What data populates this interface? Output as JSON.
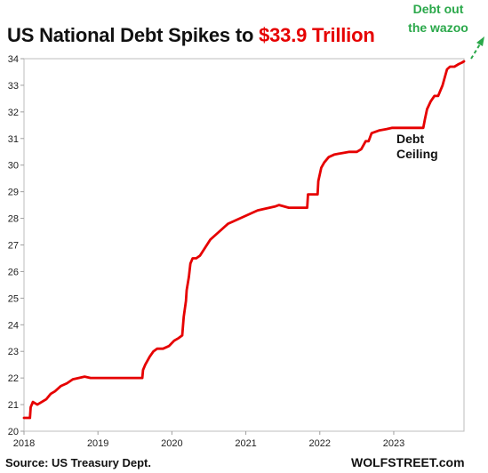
{
  "title_main": "US National Debt Spikes to ",
  "title_highlight": "$33.9 Trillion",
  "annotations": {
    "wazoo": [
      "Debt out",
      "the wazoo"
    ],
    "ceiling": [
      "Debt",
      "Ceiling"
    ]
  },
  "footer": {
    "source": "Source: US Treasury Dept.",
    "brand": "WOLFSTREET.com"
  },
  "colors": {
    "line": "#e60000",
    "title_highlight": "#e60000",
    "annotation_green": "#2aa84a",
    "text": "#111111"
  },
  "chart_data": {
    "type": "line",
    "title": "US National Debt Spikes to $33.9 Trillion",
    "xlabel": "",
    "ylabel": "",
    "xlim": [
      2018.0,
      2023.95
    ],
    "ylim": [
      20,
      34
    ],
    "x_ticks": [
      "2018",
      "2019",
      "2020",
      "2021",
      "2022",
      "2023"
    ],
    "y_ticks": [
      "20",
      "21",
      "22",
      "23",
      "24",
      "25",
      "26",
      "27",
      "28",
      "29",
      "30",
      "31",
      "32",
      "33",
      "34"
    ],
    "grid": false,
    "legend": "none",
    "series": [
      {
        "units": "trillion $",
        "x": [
          2018.0,
          2018.08,
          2018.09,
          2018.12,
          2018.18,
          2018.24,
          2018.3,
          2018.36,
          2018.42,
          2018.5,
          2018.58,
          2018.66,
          2018.74,
          2018.82,
          2018.9,
          2018.98,
          2019.05,
          2019.12,
          2019.16,
          2019.2,
          2019.6,
          2019.61,
          2019.64,
          2019.7,
          2019.75,
          2019.8,
          2019.88,
          2019.96,
          2020.03,
          2020.09,
          2020.14,
          2020.16,
          2020.19,
          2020.2,
          2020.23,
          2020.25,
          2020.28,
          2020.33,
          2020.38,
          2020.45,
          2020.52,
          2020.6,
          2020.68,
          2020.76,
          2020.84,
          2020.92,
          2021.0,
          2021.08,
          2021.16,
          2021.24,
          2021.32,
          2021.4,
          2021.45,
          2021.58,
          2021.59,
          2021.83,
          2021.84,
          2021.96,
          2021.97,
          2021.98,
          2022.02,
          2022.06,
          2022.12,
          2022.2,
          2022.3,
          2022.4,
          2022.5,
          2022.56,
          2022.62,
          2022.66,
          2022.7,
          2022.8,
          2022.9,
          2022.98,
          2023.05,
          2023.4,
          2023.42,
          2023.45,
          2023.5,
          2023.55,
          2023.6,
          2023.66,
          2023.7,
          2023.72,
          2023.76,
          2023.82,
          2023.88,
          2023.92,
          2023.95
        ],
        "values": [
          20.5,
          20.5,
          20.9,
          21.1,
          21.0,
          21.1,
          21.2,
          21.4,
          21.5,
          21.7,
          21.8,
          21.95,
          22.0,
          22.05,
          22.0,
          22.0,
          22.0,
          22.0,
          22.0,
          22.0,
          22.0,
          22.3,
          22.5,
          22.8,
          23.0,
          23.1,
          23.1,
          23.2,
          23.4,
          23.5,
          23.6,
          24.3,
          24.9,
          25.3,
          25.8,
          26.3,
          26.5,
          26.5,
          26.6,
          26.9,
          27.2,
          27.4,
          27.6,
          27.8,
          27.9,
          28.0,
          28.1,
          28.2,
          28.3,
          28.35,
          28.4,
          28.45,
          28.5,
          28.4,
          28.4,
          28.4,
          28.9,
          28.9,
          28.9,
          29.4,
          29.9,
          30.1,
          30.3,
          30.4,
          30.45,
          30.5,
          30.5,
          30.6,
          30.9,
          30.9,
          31.2,
          31.3,
          31.35,
          31.4,
          31.4,
          31.4,
          31.7,
          32.1,
          32.4,
          32.6,
          32.6,
          33.0,
          33.4,
          33.6,
          33.7,
          33.7,
          33.8,
          33.85,
          33.9
        ]
      }
    ]
  }
}
